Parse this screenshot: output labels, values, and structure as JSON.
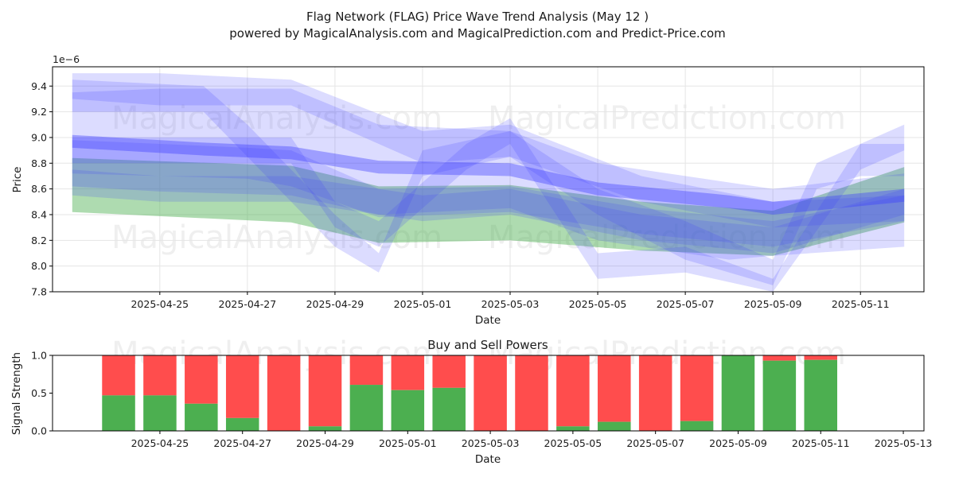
{
  "header": {
    "title": "Flag Network (FLAG) Price Wave Trend Analysis (May 12 )",
    "subtitle": "powered by MagicalAnalysis.com and MagicalPrediction.com and Predict-Price.com"
  },
  "watermarks": [
    "MagicalAnalysis.com",
    "MagicalPrediction.com"
  ],
  "chart_data": [
    {
      "type": "area",
      "xlabel": "Date",
      "ylabel": "Price",
      "offset_label": "1e−6",
      "xlim": [
        "2025-04-23",
        "2025-05-12"
      ],
      "ylim": [
        7.8,
        9.55
      ],
      "yticks": [
        "7.8",
        "8.0",
        "8.2",
        "8.4",
        "8.6",
        "8.8",
        "9.0",
        "9.2",
        "9.4"
      ],
      "xticks": [
        "2025-04-25",
        "2025-04-27",
        "2025-04-29",
        "2025-05-01",
        "2025-05-03",
        "2025-05-05",
        "2025-05-07",
        "2025-05-09",
        "2025-05-11"
      ],
      "grid": true,
      "colors": {
        "blue": "#3b3bff",
        "green": "#4caf50"
      },
      "series": [
        {
          "color": "green",
          "x": [
            "2025-04-23",
            "2025-04-28",
            "2025-04-30",
            "2025-05-03",
            "2025-05-06",
            "2025-05-09",
            "2025-05-12"
          ],
          "upper": [
            8.84,
            8.78,
            8.62,
            8.63,
            8.5,
            8.43,
            8.77
          ],
          "lower": [
            8.42,
            8.34,
            8.18,
            8.2,
            8.12,
            8.08,
            8.34
          ]
        },
        {
          "color": "blue",
          "x": [
            "2025-04-23",
            "2025-04-25",
            "2025-04-28",
            "2025-04-30",
            "2025-05-03",
            "2025-05-05",
            "2025-05-08",
            "2025-05-09",
            "2025-05-12"
          ],
          "upper": [
            9.35,
            9.38,
            9.38,
            9.1,
            9.05,
            8.8,
            8.65,
            8.6,
            8.72
          ],
          "lower": [
            8.62,
            8.58,
            8.55,
            8.4,
            8.45,
            8.2,
            8.05,
            8.08,
            8.15
          ]
        },
        {
          "color": "blue",
          "x": [
            "2025-04-23",
            "2025-04-26",
            "2025-04-28",
            "2025-04-30",
            "2025-05-03",
            "2025-05-05",
            "2025-05-08",
            "2025-05-09",
            "2025-05-12"
          ],
          "upper": [
            9.02,
            8.96,
            8.93,
            8.82,
            8.8,
            8.65,
            8.55,
            8.5,
            8.6
          ],
          "lower": [
            8.92,
            8.86,
            8.83,
            8.72,
            8.7,
            8.55,
            8.45,
            8.4,
            8.5
          ]
        },
        {
          "color": "blue",
          "x": [
            "2025-04-23",
            "2025-04-27",
            "2025-04-28",
            "2025-04-30",
            "2025-05-03",
            "2025-05-06",
            "2025-05-09",
            "2025-05-12"
          ],
          "upper": [
            8.98,
            8.92,
            8.9,
            8.6,
            8.62,
            8.45,
            8.35,
            8.55
          ],
          "lower": [
            8.72,
            8.68,
            8.62,
            8.38,
            8.42,
            8.25,
            8.15,
            8.35
          ]
        },
        {
          "color": "blue",
          "x": [
            "2025-04-23",
            "2025-04-25",
            "2025-04-28",
            "2025-05-01",
            "2025-05-03",
            "2025-05-06",
            "2025-05-09",
            "2025-05-12"
          ],
          "upper": [
            9.5,
            9.5,
            9.45,
            9.05,
            9.1,
            8.7,
            8.5,
            8.55
          ],
          "lower": [
            9.3,
            9.25,
            9.25,
            8.8,
            8.85,
            8.5,
            8.3,
            8.35
          ]
        },
        {
          "color": "blue",
          "x": [
            "2025-04-23",
            "2025-04-26",
            "2025-04-27",
            "2025-04-29",
            "2025-04-30",
            "2025-05-01",
            "2025-05-03",
            "2025-05-05",
            "2025-05-07",
            "2025-05-09",
            "2025-05-10",
            "2025-05-11",
            "2025-05-12"
          ],
          "upper": [
            9.45,
            9.4,
            9.1,
            8.4,
            8.1,
            8.9,
            9.05,
            8.6,
            8.35,
            8.05,
            8.8,
            8.95,
            8.95
          ],
          "lower": [
            9.2,
            9.2,
            8.85,
            8.15,
            7.95,
            8.7,
            8.85,
            8.4,
            8.05,
            7.85,
            8.6,
            8.7,
            8.7
          ]
        },
        {
          "color": "blue",
          "x": [
            "2025-04-23",
            "2025-04-28",
            "2025-04-29",
            "2025-04-30",
            "2025-05-02",
            "2025-05-03",
            "2025-05-05",
            "2025-05-07",
            "2025-05-09",
            "2025-05-11",
            "2025-05-12"
          ],
          "upper": [
            9.0,
            9.0,
            8.5,
            8.35,
            8.95,
            9.15,
            8.1,
            8.15,
            7.9,
            8.95,
            9.1
          ],
          "lower": [
            8.8,
            8.8,
            8.3,
            8.15,
            8.75,
            8.95,
            7.9,
            7.95,
            7.8,
            8.75,
            8.9
          ]
        },
        {
          "color": "blue",
          "x": [
            "2025-04-23",
            "2025-04-25",
            "2025-04-28",
            "2025-05-01",
            "2025-05-03",
            "2025-05-06",
            "2025-05-09",
            "2025-05-12"
          ],
          "upper": [
            8.75,
            8.7,
            8.7,
            8.55,
            8.6,
            8.4,
            8.3,
            8.6
          ],
          "lower": [
            8.55,
            8.5,
            8.5,
            8.35,
            8.4,
            8.2,
            8.1,
            8.4
          ]
        }
      ]
    },
    {
      "type": "bar",
      "title": "Buy and Sell Powers",
      "xlabel": "Date",
      "ylabel": "Signal Strength",
      "ylim": [
        0,
        1
      ],
      "yticks": [
        "0.0",
        "0.5",
        "1.0"
      ],
      "xlim": [
        "2025-04-23",
        "2025-05-13"
      ],
      "xticks": [
        "2025-04-25",
        "2025-04-27",
        "2025-04-29",
        "2025-05-01",
        "2025-05-03",
        "2025-05-05",
        "2025-05-07",
        "2025-05-09",
        "2025-05-11",
        "2025-05-13"
      ],
      "colors": {
        "buy": "#4caf50",
        "sell": "#ff4d4d"
      },
      "categories": [
        "2025-04-24",
        "2025-04-25",
        "2025-04-26",
        "2025-04-27",
        "2025-04-28",
        "2025-04-29",
        "2025-04-30",
        "2025-05-01",
        "2025-05-02",
        "2025-05-03",
        "2025-05-04",
        "2025-05-05",
        "2025-05-06",
        "2025-05-07",
        "2025-05-08",
        "2025-05-09",
        "2025-05-10",
        "2025-05-11"
      ],
      "buy": [
        0.47,
        0.47,
        0.36,
        0.17,
        0.0,
        0.06,
        0.61,
        0.54,
        0.57,
        0.0,
        0.0,
        0.06,
        0.12,
        0.0,
        0.13,
        1.0,
        0.93,
        0.94
      ]
    }
  ]
}
